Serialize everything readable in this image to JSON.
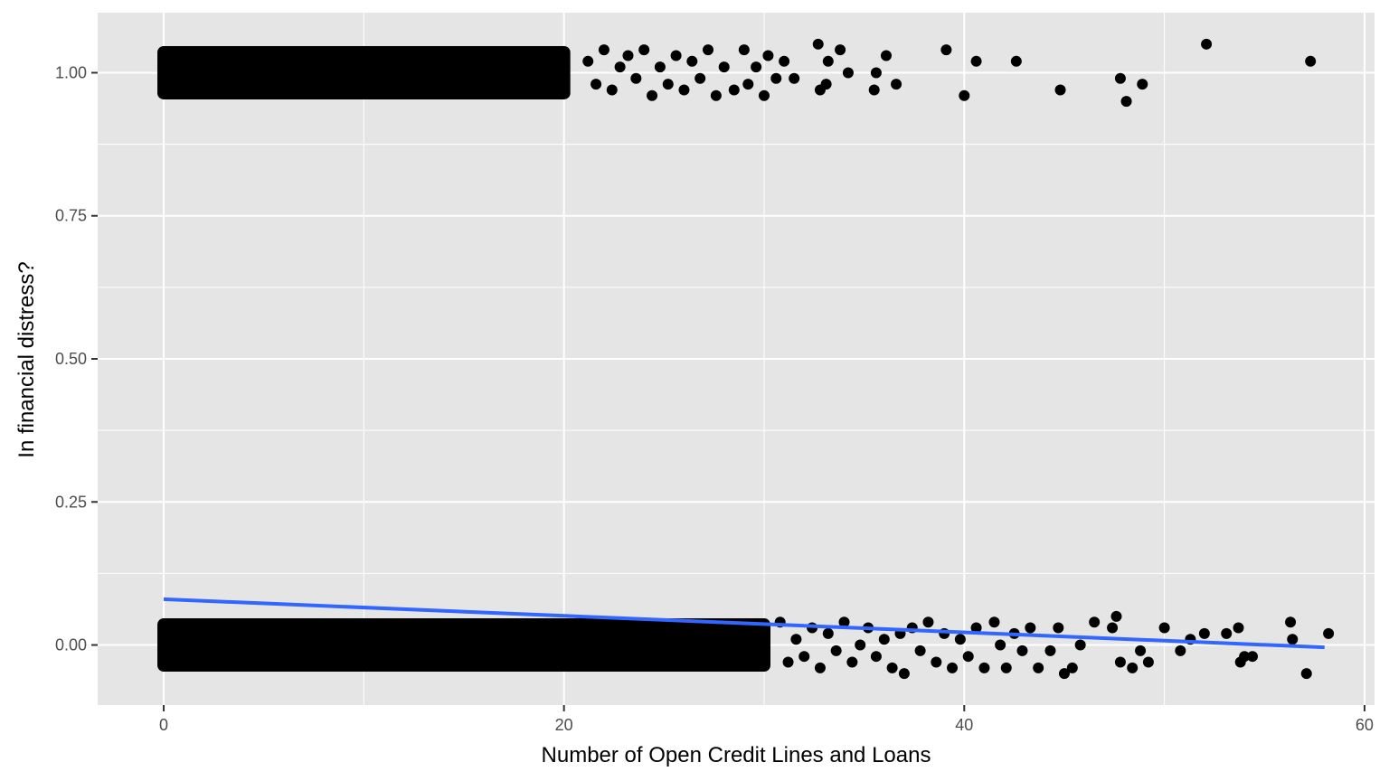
{
  "chart_data": {
    "type": "scatter",
    "title": "",
    "xlabel": "Number of Open Credit Lines and Loans",
    "ylabel": "In financial distress?",
    "xlim": [
      -3.3,
      60.5
    ],
    "ylim": [
      -0.105,
      1.105
    ],
    "x_ticks": [
      0,
      20,
      40,
      60
    ],
    "x_tick_labels": [
      "0",
      "20",
      "40",
      "60"
    ],
    "y_ticks": [
      0.0,
      0.25,
      0.5,
      0.75,
      1.0
    ],
    "y_tick_labels": [
      "0.00",
      "0.25",
      "0.50",
      "0.75",
      "1.00"
    ],
    "grid": true,
    "background": "#e5e5e5",
    "grid_color": "#ffffff",
    "point_color": "#000000",
    "line_color": "#3366ff",
    "series": [
      {
        "kind": "points",
        "dense_bands": [
          {
            "y_center": 1.0,
            "jitter": 0.045,
            "x_range": [
              0,
              20
            ]
          },
          {
            "y_center": 0.0,
            "jitter": 0.045,
            "x_range": [
              0,
              30
            ]
          }
        ],
        "points": [
          [
            21.2,
            1.02
          ],
          [
            21.6,
            0.98
          ],
          [
            22.0,
            1.04
          ],
          [
            22.4,
            0.97
          ],
          [
            22.8,
            1.01
          ],
          [
            23.2,
            1.03
          ],
          [
            23.6,
            0.99
          ],
          [
            24.0,
            1.04
          ],
          [
            24.4,
            0.96
          ],
          [
            24.8,
            1.01
          ],
          [
            25.2,
            0.98
          ],
          [
            25.6,
            1.03
          ],
          [
            26.0,
            0.97
          ],
          [
            26.4,
            1.02
          ],
          [
            26.8,
            0.99
          ],
          [
            27.2,
            1.04
          ],
          [
            27.6,
            0.96
          ],
          [
            28.0,
            1.01
          ],
          [
            28.5,
            0.97
          ],
          [
            29.0,
            1.04
          ],
          [
            29.2,
            0.98
          ],
          [
            29.6,
            1.01
          ],
          [
            30.0,
            0.96
          ],
          [
            30.2,
            1.03
          ],
          [
            30.6,
            0.99
          ],
          [
            31.0,
            1.02
          ],
          [
            31.5,
            0.99
          ],
          [
            32.7,
            1.05
          ],
          [
            32.8,
            0.97
          ],
          [
            33.1,
            0.98
          ],
          [
            33.2,
            1.02
          ],
          [
            33.8,
            1.04
          ],
          [
            34.2,
            1.0
          ],
          [
            35.5,
            0.97
          ],
          [
            35.6,
            1.0
          ],
          [
            36.1,
            1.03
          ],
          [
            36.6,
            0.98
          ],
          [
            39.1,
            1.04
          ],
          [
            40.0,
            0.96
          ],
          [
            40.6,
            1.02
          ],
          [
            42.6,
            1.02
          ],
          [
            44.8,
            0.97
          ],
          [
            47.8,
            0.99
          ],
          [
            48.1,
            0.95
          ],
          [
            48.9,
            0.98
          ],
          [
            52.1,
            1.05
          ],
          [
            57.3,
            1.02
          ],
          [
            30.8,
            0.04
          ],
          [
            31.2,
            -0.03
          ],
          [
            31.6,
            0.01
          ],
          [
            32.0,
            -0.02
          ],
          [
            32.4,
            0.03
          ],
          [
            32.8,
            -0.04
          ],
          [
            33.2,
            0.02
          ],
          [
            33.6,
            -0.01
          ],
          [
            34.0,
            0.04
          ],
          [
            34.4,
            -0.03
          ],
          [
            34.8,
            0.0
          ],
          [
            35.2,
            0.03
          ],
          [
            35.6,
            -0.02
          ],
          [
            36.0,
            0.01
          ],
          [
            36.4,
            -0.04
          ],
          [
            36.8,
            0.02
          ],
          [
            37.0,
            -0.05
          ],
          [
            37.4,
            0.03
          ],
          [
            37.8,
            -0.01
          ],
          [
            38.2,
            0.04
          ],
          [
            38.6,
            -0.03
          ],
          [
            39.0,
            0.02
          ],
          [
            39.4,
            -0.04
          ],
          [
            39.8,
            0.01
          ],
          [
            40.2,
            -0.02
          ],
          [
            40.6,
            0.03
          ],
          [
            41.0,
            -0.04
          ],
          [
            41.5,
            0.04
          ],
          [
            41.8,
            0.0
          ],
          [
            42.1,
            -0.04
          ],
          [
            42.5,
            0.02
          ],
          [
            42.9,
            -0.01
          ],
          [
            43.3,
            0.03
          ],
          [
            43.7,
            -0.04
          ],
          [
            44.3,
            -0.01
          ],
          [
            44.7,
            0.03
          ],
          [
            45.0,
            -0.05
          ],
          [
            45.4,
            -0.04
          ],
          [
            45.8,
            0.0
          ],
          [
            46.5,
            0.04
          ],
          [
            47.4,
            0.03
          ],
          [
            47.6,
            0.05
          ],
          [
            47.8,
            -0.03
          ],
          [
            48.4,
            -0.04
          ],
          [
            48.8,
            -0.01
          ],
          [
            49.2,
            -0.03
          ],
          [
            50.0,
            0.03
          ],
          [
            50.8,
            -0.01
          ],
          [
            51.3,
            0.01
          ],
          [
            52.0,
            0.02
          ],
          [
            53.1,
            0.02
          ],
          [
            53.7,
            0.03
          ],
          [
            53.8,
            -0.03
          ],
          [
            54.0,
            -0.02
          ],
          [
            54.4,
            -0.02
          ],
          [
            56.3,
            0.04
          ],
          [
            56.4,
            0.01
          ],
          [
            57.1,
            -0.05
          ],
          [
            58.2,
            0.02
          ]
        ]
      },
      {
        "kind": "line",
        "points": [
          [
            0,
            0.08
          ],
          [
            58.0,
            -0.004
          ]
        ]
      }
    ]
  }
}
